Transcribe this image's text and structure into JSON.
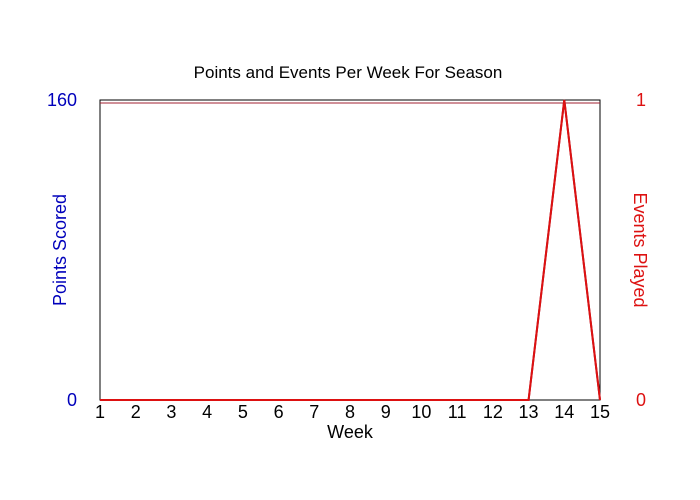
{
  "chart_data": {
    "type": "line",
    "title": "Points and Events Per Week For Season",
    "xlabel": "Week",
    "x": [
      1,
      2,
      3,
      4,
      5,
      6,
      7,
      8,
      9,
      10,
      11,
      12,
      13,
      14,
      15
    ],
    "x_tick_labels": [
      "1",
      "2",
      "3",
      "4",
      "5",
      "6",
      "7",
      "8",
      "9",
      "10",
      "11",
      "12",
      "13",
      "14",
      "15"
    ],
    "left_axis": {
      "label": "Points Scored",
      "ylim": [
        0,
        160
      ],
      "tick_labels": [
        "0",
        "160"
      ],
      "color": "#0000bb"
    },
    "right_axis": {
      "label": "Events Played",
      "ylim": [
        0,
        1
      ],
      "tick_labels": [
        "0",
        "1"
      ],
      "color": "#dd1111"
    },
    "series": [
      {
        "axis": "left",
        "color": "#8a1a3a",
        "values": [
          0,
          0,
          0,
          0,
          0,
          0,
          0,
          0,
          0,
          0,
          0,
          0,
          0,
          160,
          0
        ]
      },
      {
        "axis": "right",
        "color": "#dd1111",
        "values": [
          0,
          0,
          0,
          0,
          0,
          0,
          0,
          0,
          0,
          0,
          0,
          0,
          0,
          1,
          0
        ]
      }
    ],
    "reference_line_value": 160,
    "reference_line_color": "#a02030",
    "grid": false,
    "legend": "none"
  }
}
